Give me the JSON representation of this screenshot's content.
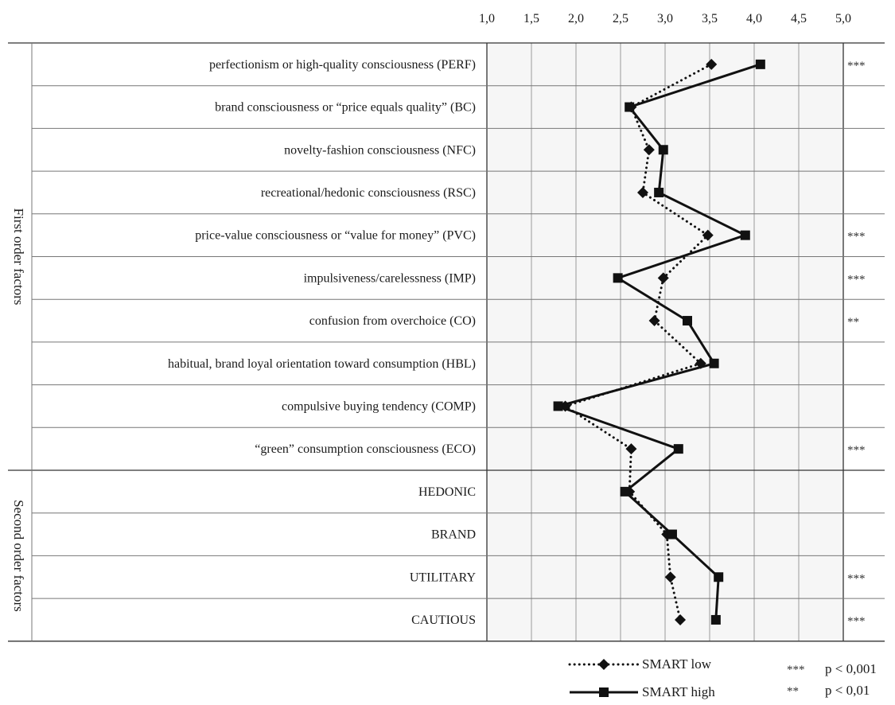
{
  "chart_data": {
    "type": "line",
    "orientation": "horizontal",
    "xlim": [
      1.0,
      5.0
    ],
    "x_ticks": [
      "1,0",
      "1,5",
      "2,0",
      "2,5",
      "3,0",
      "3,5",
      "4,0",
      "4,5",
      "5,0"
    ],
    "x_tick_values": [
      1.0,
      1.5,
      2.0,
      2.5,
      3.0,
      3.5,
      4.0,
      4.5,
      5.0
    ],
    "grid": true,
    "legend_position": "bottom-right",
    "groups": [
      {
        "label": "First order factors",
        "rows": [
          0,
          9
        ]
      },
      {
        "label": "Second order factors",
        "rows": [
          10,
          13
        ]
      }
    ],
    "categories": [
      "perfectionism or high-quality consciousness (PERF)",
      "brand consciousness or “price equals quality” (BC)",
      "novelty-fashion consciousness (NFC)",
      "recreational/hedonic consciousness (RSC)",
      "price-value consciousness or “value for money” (PVC)",
      "impulsiveness/carelessness (IMP)",
      "confusion from overchoice (CO)",
      "habitual, brand loyal orientation toward consumption (HBL)",
      "compulsive buying tendency (COMP)",
      "“green” consumption consciousness (ECO)",
      "HEDONIC",
      "BRAND",
      "UTILITARY",
      "CAUTIOUS"
    ],
    "significance": [
      "***",
      "",
      "",
      "",
      "***",
      "***",
      "**",
      "",
      "",
      "***",
      "",
      "",
      "***",
      "***"
    ],
    "series": [
      {
        "name": "SMART low",
        "marker": "diamond",
        "line": "dotted",
        "color": "#111111",
        "values": [
          3.52,
          2.62,
          2.82,
          2.75,
          3.48,
          2.98,
          2.88,
          3.4,
          1.88,
          2.62,
          2.6,
          3.02,
          3.06,
          3.17
        ]
      },
      {
        "name": "SMART high",
        "marker": "square",
        "line": "solid",
        "color": "#111111",
        "values": [
          4.07,
          2.6,
          2.98,
          2.93,
          3.9,
          2.47,
          3.25,
          3.55,
          1.8,
          3.15,
          2.55,
          3.08,
          3.6,
          3.57
        ]
      }
    ],
    "significance_legend": [
      {
        "marker": "***",
        "label": "p < 0,001"
      },
      {
        "marker": "**",
        "label": "p < 0,01"
      }
    ]
  }
}
